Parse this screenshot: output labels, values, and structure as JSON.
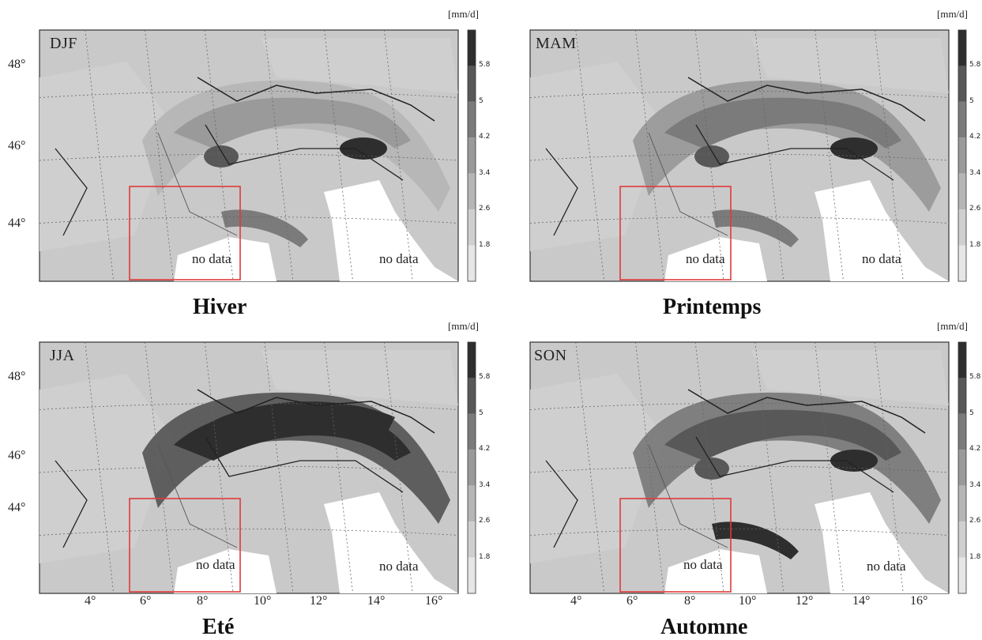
{
  "panels": [
    {
      "tag": "DJF",
      "caption": "Hiver",
      "variant": "djf"
    },
    {
      "tag": "MAM",
      "caption": "Printemps",
      "variant": "mam"
    },
    {
      "tag": "JJA",
      "caption": "Eté",
      "variant": "jja"
    },
    {
      "tag": "SON",
      "caption": "Automne",
      "variant": "son"
    }
  ],
  "units": "[mm/d]",
  "colorbar_ticks": [
    "5.8",
    "5",
    "4.2",
    "3.4",
    "2.6",
    "1.8"
  ],
  "no_data_label": "no data",
  "lat_labels": [
    "48°",
    "46°",
    "44°"
  ],
  "lon_labels": [
    "4°",
    "6°",
    "8°",
    "10°",
    "12°",
    "14°",
    "16°"
  ],
  "colors": {
    "highlight_box": "#e03a3a",
    "grey_dark": "#1e1e1e",
    "grey_light": "#e2e2e2"
  }
}
